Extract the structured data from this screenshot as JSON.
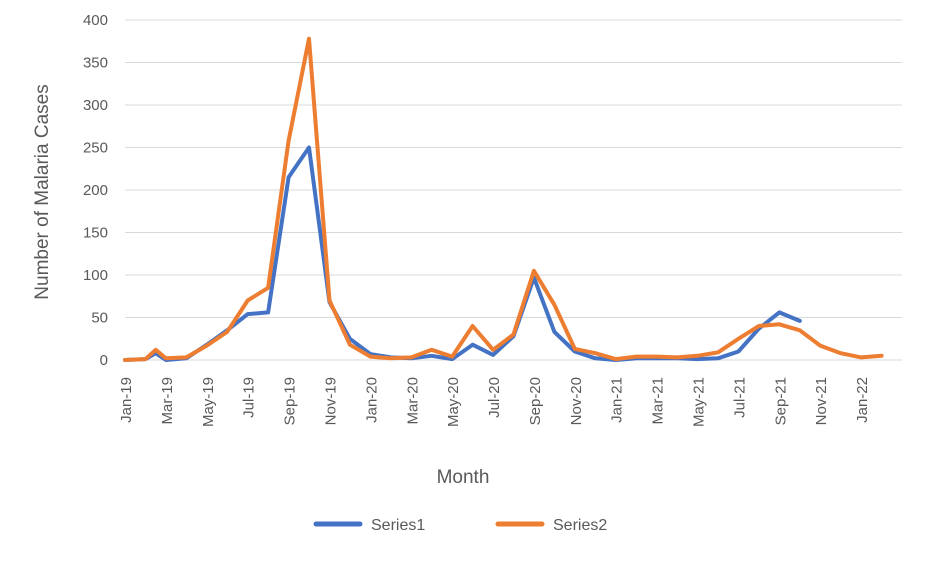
{
  "chart_data": {
    "type": "line",
    "xlabel": "Month",
    "ylabel": "Number of Malaria Cases",
    "ylim": [
      0,
      400
    ],
    "yticks": [
      0,
      50,
      100,
      150,
      200,
      250,
      300,
      350,
      400
    ],
    "grid": true,
    "legend_position": "bottom",
    "x_tick_labels": [
      "Jan-19",
      "Mar-19",
      "May-19",
      "Jul-19",
      "Sep-19",
      "Nov-19",
      "Jan-20",
      "Mar-20",
      "May-20",
      "Jul-20",
      "Sep-20",
      "Nov-20",
      "Jan-21",
      "Mar-21",
      "May-21",
      "Jul-21",
      "Sep-21",
      "Nov-21",
      "Jan-22"
    ],
    "series": [
      {
        "name": "Series1",
        "color": "#4472c4",
        "points": [
          {
            "x": "Jan-19",
            "y": 0
          },
          {
            "x": "Feb-19",
            "y": 1
          },
          {
            "x": "Feb-19",
            "y": 8
          },
          {
            "x": "Mar-19",
            "y": 0
          },
          {
            "x": "Apr-19",
            "y": 2
          },
          {
            "x": "May-19",
            "y": 18
          },
          {
            "x": "Jun-19",
            "y": 35
          },
          {
            "x": "Jul-19",
            "y": 54
          },
          {
            "x": "Aug-19",
            "y": 56
          },
          {
            "x": "Sep-19",
            "y": 215
          },
          {
            "x": "Oct-19",
            "y": 250
          },
          {
            "x": "Nov-19",
            "y": 68
          },
          {
            "x": "Dec-19",
            "y": 25
          },
          {
            "x": "Jan-20",
            "y": 7
          },
          {
            "x": "Feb-20",
            "y": 3
          },
          {
            "x": "Mar-20",
            "y": 2
          },
          {
            "x": "Apr-20",
            "y": 5
          },
          {
            "x": "May-20",
            "y": 1
          },
          {
            "x": "Jun-20",
            "y": 18
          },
          {
            "x": "Jul-20",
            "y": 6
          },
          {
            "x": "Aug-20",
            "y": 28
          },
          {
            "x": "Sep-20",
            "y": 97
          },
          {
            "x": "Oct-20",
            "y": 33
          },
          {
            "x": "Nov-20",
            "y": 10
          },
          {
            "x": "Dec-20",
            "y": 2
          },
          {
            "x": "Jan-21",
            "y": 0
          },
          {
            "x": "Feb-21",
            "y": 2
          },
          {
            "x": "Mar-21",
            "y": 2
          },
          {
            "x": "Apr-21",
            "y": 2
          },
          {
            "x": "May-21",
            "y": 1
          },
          {
            "x": "Jun-21",
            "y": 2
          },
          {
            "x": "Jul-21",
            "y": 10
          },
          {
            "x": "Aug-21",
            "y": 37
          },
          {
            "x": "Sep-21",
            "y": 56
          },
          {
            "x": "Oct-21",
            "y": 46
          }
        ]
      },
      {
        "name": "Series2",
        "color": "#ed7d31",
        "points": [
          {
            "x": "Jan-19",
            "y": 0
          },
          {
            "x": "Feb-19",
            "y": 1
          },
          {
            "x": "Feb-19",
            "y": 12
          },
          {
            "x": "Mar-19",
            "y": 2
          },
          {
            "x": "Apr-19",
            "y": 3
          },
          {
            "x": "May-19",
            "y": 17
          },
          {
            "x": "Jun-19",
            "y": 33
          },
          {
            "x": "Jul-19",
            "y": 70
          },
          {
            "x": "Aug-19",
            "y": 85
          },
          {
            "x": "Sep-19",
            "y": 258
          },
          {
            "x": "Oct-19",
            "y": 378
          },
          {
            "x": "Nov-19",
            "y": 70
          },
          {
            "x": "Dec-19",
            "y": 18
          },
          {
            "x": "Jan-20",
            "y": 4
          },
          {
            "x": "Feb-20",
            "y": 2
          },
          {
            "x": "Mar-20",
            "y": 3
          },
          {
            "x": "Apr-20",
            "y": 12
          },
          {
            "x": "May-20",
            "y": 4
          },
          {
            "x": "Jun-20",
            "y": 40
          },
          {
            "x": "Jul-20",
            "y": 12
          },
          {
            "x": "Aug-20",
            "y": 30
          },
          {
            "x": "Sep-20",
            "y": 105
          },
          {
            "x": "Oct-20",
            "y": 65
          },
          {
            "x": "Nov-20",
            "y": 13
          },
          {
            "x": "Dec-20",
            "y": 8
          },
          {
            "x": "Jan-21",
            "y": 1
          },
          {
            "x": "Feb-21",
            "y": 4
          },
          {
            "x": "Mar-21",
            "y": 4
          },
          {
            "x": "Apr-21",
            "y": 3
          },
          {
            "x": "May-21",
            "y": 5
          },
          {
            "x": "Jun-21",
            "y": 9
          },
          {
            "x": "Jul-21",
            "y": 25
          },
          {
            "x": "Aug-21",
            "y": 40
          },
          {
            "x": "Sep-21",
            "y": 42
          },
          {
            "x": "Oct-21",
            "y": 35
          },
          {
            "x": "Nov-21",
            "y": 17
          },
          {
            "x": "Dec-21",
            "y": 8
          },
          {
            "x": "Jan-22",
            "y": 3
          },
          {
            "x": "Feb-22",
            "y": 5
          }
        ]
      }
    ]
  }
}
